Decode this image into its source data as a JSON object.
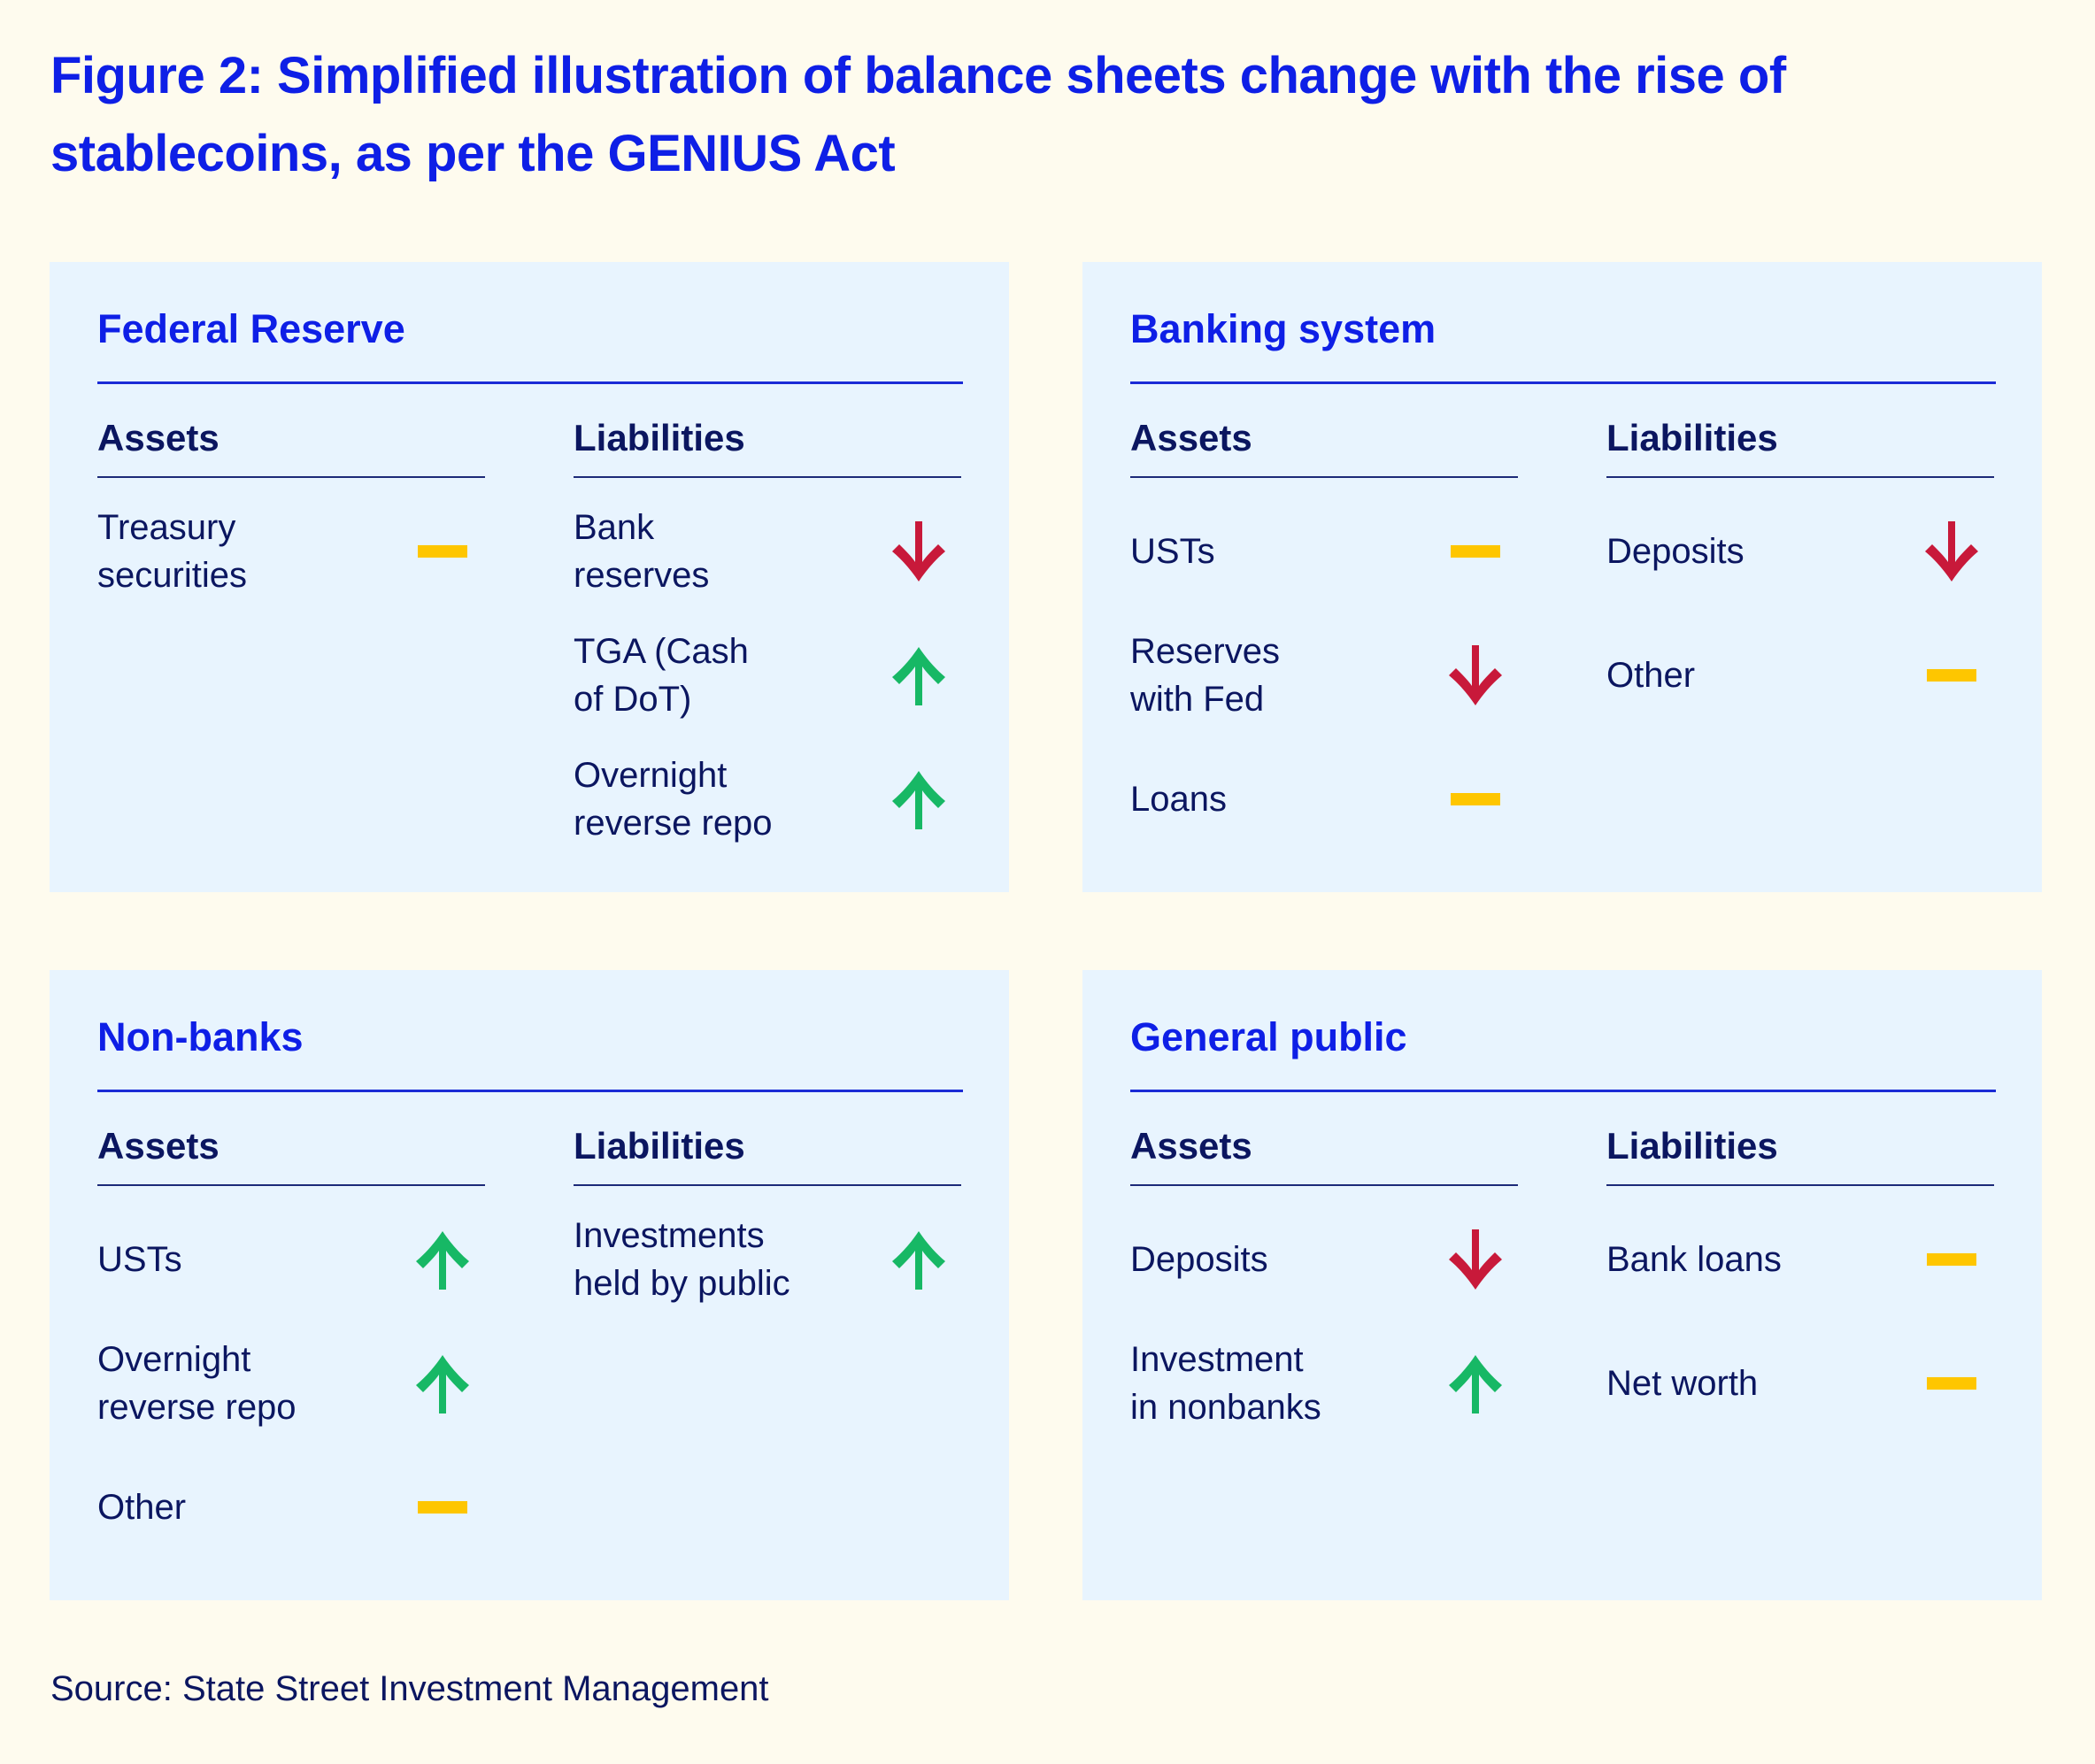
{
  "title": "Figure 2: Simplified illustration of balance sheets change with the rise of stablecoins, as per the GENIUS Act",
  "colors": {
    "background": "#fefbee",
    "panel": "#e8f4fe",
    "title_blue": "#0e1fe6",
    "text_navy": "#0b1660",
    "up_green": "#17b865",
    "down_red": "#c8193a",
    "neutral_yellow": "#fec600"
  },
  "legend": {
    "up": "arrow-up-icon (increase)",
    "down": "arrow-down-icon (decrease)",
    "neutral": "dash-icon (no change)"
  },
  "panels": [
    {
      "title": "Federal Reserve",
      "assets_label": "Assets",
      "liabilities_label": "Liabilities",
      "assets": [
        {
          "label": "Treasury\nsecurities",
          "change": "neutral"
        }
      ],
      "liabilities": [
        {
          "label": "Bank\nreserves",
          "change": "down"
        },
        {
          "label": "TGA (Cash\nof DoT)",
          "change": "up"
        },
        {
          "label": "Overnight\nreverse repo",
          "change": "up"
        }
      ]
    },
    {
      "title": "Banking system",
      "assets_label": "Assets",
      "liabilities_label": "Liabilities",
      "assets": [
        {
          "label": "USTs",
          "change": "neutral"
        },
        {
          "label": "Reserves\nwith Fed",
          "change": "down"
        },
        {
          "label": "Loans",
          "change": "neutral"
        }
      ],
      "liabilities": [
        {
          "label": "Deposits",
          "change": "down"
        },
        {
          "label": "Other",
          "change": "neutral"
        }
      ]
    },
    {
      "title": "Non-banks",
      "assets_label": "Assets",
      "liabilities_label": "Liabilities",
      "assets": [
        {
          "label": "USTs",
          "change": "up"
        },
        {
          "label": "Overnight\nreverse repo",
          "change": "up"
        },
        {
          "label": "Other",
          "change": "neutral"
        }
      ],
      "liabilities": [
        {
          "label": "Investments\nheld by public",
          "change": "up"
        }
      ]
    },
    {
      "title": "General public",
      "assets_label": "Assets",
      "liabilities_label": "Liabilities",
      "assets": [
        {
          "label": "Deposits",
          "change": "down"
        },
        {
          "label": "Investment\nin nonbanks",
          "change": "up"
        }
      ],
      "liabilities": [
        {
          "label": "Bank loans",
          "change": "neutral"
        },
        {
          "label": "Net worth",
          "change": "neutral"
        }
      ]
    }
  ],
  "source": "Source: State Street Investment Management"
}
